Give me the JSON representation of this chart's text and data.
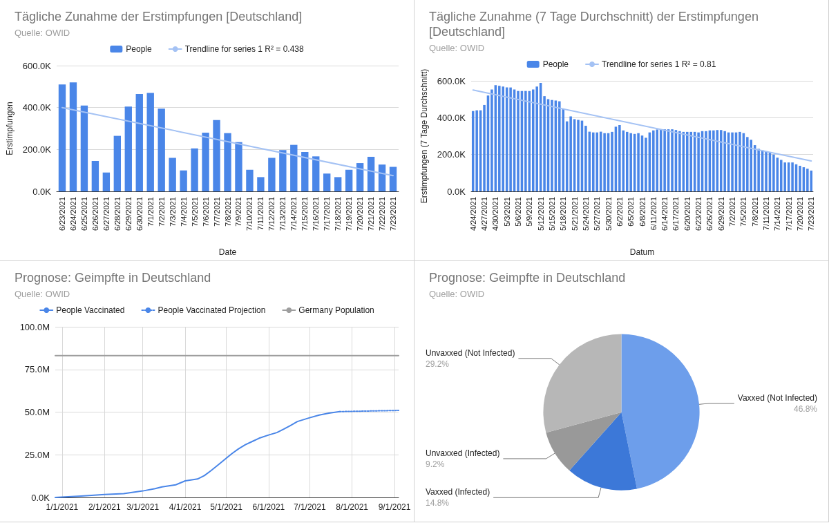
{
  "chart_data": [
    {
      "type": "bar",
      "title": "Tägliche Zunahme der Erstimpfungen [Deutschland]",
      "subtitle": "Quelle: OWID",
      "xlabel": "Date",
      "ylabel": "Erstimpfungen",
      "categories": [
        "6/23/2021",
        "6/24/2021",
        "6/25/2021",
        "6/26/2021",
        "6/27/2021",
        "6/28/2021",
        "6/29/2021",
        "6/30/2021",
        "7/1/2021",
        "7/2/2021",
        "7/3/2021",
        "7/4/2021",
        "7/5/2021",
        "7/6/2021",
        "7/7/2021",
        "7/8/2021",
        "7/9/2021",
        "7/10/2021",
        "7/11/2021",
        "7/12/2021",
        "7/13/2021",
        "7/14/2021",
        "7/15/2021",
        "7/16/2021",
        "7/17/2021",
        "7/18/2021",
        "7/19/2021",
        "7/20/2021",
        "7/21/2021",
        "7/22/2021",
        "7/23/2021"
      ],
      "series": [
        {
          "name": "People",
          "color": "#4a86e8",
          "values": [
            510000,
            520000,
            410000,
            145000,
            90000,
            265000,
            405000,
            465000,
            470000,
            395000,
            160000,
            100000,
            205000,
            280000,
            340000,
            278000,
            235000,
            103000,
            68000,
            160000,
            197000,
            222000,
            188000,
            167000,
            85000,
            68000,
            103000,
            135000,
            165000,
            128000,
            117000
          ]
        },
        {
          "type": "line",
          "name": "Trendline for series 1 R² = 0.438",
          "color": "#a4c2f4",
          "x": [
            "6/23/2021",
            "7/23/2021"
          ],
          "values": [
            400000,
            75000
          ]
        }
      ],
      "ylim": [
        0,
        600000
      ],
      "yticks": [
        {
          "value": 0,
          "label": "0.0K"
        },
        {
          "value": 200000,
          "label": "200.0K"
        },
        {
          "value": 400000,
          "label": "400.0K"
        },
        {
          "value": 600000,
          "label": "600.0K"
        }
      ],
      "grid": "y",
      "legend": "top",
      "marker": "none"
    },
    {
      "type": "bar",
      "title": "Tägliche Zunahme (7 Tage Durchschnitt) der Erstimpfungen [Deutschland]",
      "subtitle": "Quelle: OWID",
      "xlabel": "Datum",
      "ylabel": "Erstimpfungen (7 Tage Durchschnitt)",
      "categories": [
        "4/24/2021",
        null,
        null,
        "4/27/2021",
        null,
        null,
        "4/30/2021",
        null,
        null,
        "5/3/2021",
        null,
        null,
        "5/6/2021",
        null,
        null,
        "5/9/2021",
        null,
        null,
        "5/12/2021",
        null,
        null,
        "5/15/2021",
        null,
        null,
        "5/18/2021",
        null,
        null,
        "5/21/2021",
        null,
        null,
        "5/24/2021",
        null,
        null,
        "5/27/2021",
        null,
        null,
        "5/30/2021",
        null,
        null,
        "6/2/2021",
        null,
        null,
        "6/5/2021",
        null,
        null,
        "6/8/2021",
        null,
        null,
        "6/11/2021",
        null,
        null,
        "6/14/2021",
        null,
        null,
        "6/17/2021",
        null,
        null,
        "6/20/2021",
        null,
        null,
        "6/23/2021",
        null,
        null,
        "6/26/2021",
        null,
        null,
        "6/29/2021",
        null,
        null,
        "7/2/2021",
        null,
        null,
        "7/5/2021",
        null,
        null,
        "7/8/2021",
        null,
        null,
        "7/11/2021",
        null,
        null,
        "7/14/2021",
        null,
        null,
        "7/17/2021",
        null,
        null,
        "7/20/2021",
        null,
        null,
        "7/23/2021"
      ],
      "series": [
        {
          "name": "People",
          "color": "#4a86e8",
          "values": [
            436000,
            440000,
            440000,
            469000,
            520000,
            553000,
            577000,
            573000,
            569000,
            564000,
            564000,
            553000,
            545000,
            545000,
            545000,
            545000,
            553000,
            569000,
            589000,
            517000,
            501000,
            496000,
            493000,
            489000,
            449000,
            380000,
            407000,
            392000,
            388000,
            384000,
            356000,
            324000,
            320000,
            320000,
            324000,
            316000,
            316000,
            323000,
            351000,
            360000,
            331000,
            323000,
            316000,
            312000,
            316000,
            303000,
            291000,
            320000,
            331000,
            336000,
            336000,
            337000,
            337000,
            337000,
            333000,
            327000,
            323000,
            323000,
            323000,
            323000,
            320000,
            327000,
            327000,
            331000,
            331000,
            333000,
            333000,
            327000,
            320000,
            320000,
            320000,
            323000,
            316000,
            295000,
            280000,
            251000,
            231000,
            223000,
            216000,
            211000,
            200000,
            183000,
            171000,
            157000,
            157000,
            157000,
            147000,
            139000,
            131000,
            123000,
            113000
          ]
        },
        {
          "type": "line",
          "name": "Trendline for series 1 R² = 0.81",
          "color": "#a4c2f4",
          "x": [
            "4/24/2021",
            "7/23/2021"
          ],
          "values": [
            550000,
            165000
          ]
        }
      ],
      "ylim": [
        0,
        600000
      ],
      "yticks": [
        {
          "value": 0,
          "label": "0.0K"
        },
        {
          "value": 200000,
          "label": "200.0K"
        },
        {
          "value": 400000,
          "label": "400.0K"
        },
        {
          "value": 600000,
          "label": "600.0K"
        }
      ],
      "grid": "y",
      "legend": "top",
      "marker": "none"
    },
    {
      "type": "line",
      "title": "Prognose: Geimpfte in Deutschland",
      "subtitle": "Quelle: OWID",
      "series": [
        {
          "name": "People Vaccinated",
          "color": "#4a86e8",
          "x": [
            "2020-12-27",
            "2021-01-15",
            "2021-02-01",
            "2021-02-15",
            "2021-03-01",
            "2021-03-10",
            "2021-03-15",
            "2021-03-25",
            "2021-04-01",
            "2021-04-10",
            "2021-04-15",
            "2021-04-20",
            "2021-04-25",
            "2021-05-01",
            "2021-05-05",
            "2021-05-10",
            "2021-05-15",
            "2021-05-20",
            "2021-05-25",
            "2021-06-01",
            "2021-06-07",
            "2021-06-12",
            "2021-06-17",
            "2021-06-22",
            "2021-07-01",
            "2021-07-08",
            "2021-07-15",
            "2021-07-23"
          ],
          "values": [
            0,
            800000,
            1700000,
            2200000,
            3800000,
            5200000,
            6200000,
            7400000,
            9700000,
            10800000,
            12800000,
            15800000,
            19000000,
            23000000,
            25600000,
            28500000,
            30900000,
            32800000,
            34700000,
            36600000,
            38000000,
            40000000,
            42200000,
            44500000,
            46700000,
            48300000,
            49400000,
            50300000
          ]
        },
        {
          "name": "People Vaccinated Projection",
          "color": "#4a86e8",
          "line_style": "dotted",
          "x": [
            "2021-07-23",
            "2021-09-04"
          ],
          "values": [
            50300000,
            51000000
          ]
        },
        {
          "name": "Germany Population",
          "color": "#9e9e9e",
          "x": [
            "2020-12-27",
            "2021-09-04"
          ],
          "values": [
            83100000,
            83100000
          ]
        }
      ],
      "xlim": [
        "2020-12-27",
        "2021-09-04"
      ],
      "xticks": [
        {
          "value": "2021-01-01",
          "label": "1/1/2021"
        },
        {
          "value": "2021-02-01",
          "label": "2/1/2021"
        },
        {
          "value": "2021-03-01",
          "label": "3/1/2021"
        },
        {
          "value": "2021-04-01",
          "label": "4/1/2021"
        },
        {
          "value": "2021-05-01",
          "label": "5/1/2021"
        },
        {
          "value": "2021-06-01",
          "label": "6/1/2021"
        },
        {
          "value": "2021-07-01",
          "label": "7/1/2021"
        },
        {
          "value": "2021-08-01",
          "label": "8/1/2021"
        },
        {
          "value": "2021-09-01",
          "label": "9/1/2021"
        }
      ],
      "ylim": [
        0,
        100000000
      ],
      "yticks": [
        {
          "value": 0,
          "label": "0.0K"
        },
        {
          "value": 25000000,
          "label": "25.0M"
        },
        {
          "value": 50000000,
          "label": "50.0M"
        },
        {
          "value": 75000000,
          "label": "75.0M"
        },
        {
          "value": 100000000,
          "label": "100.0M"
        }
      ],
      "grid": true,
      "legend": "top",
      "marker": "none",
      "line_style": "solid"
    },
    {
      "type": "pie",
      "title": "Prognose: Geimpfte in Deutschland",
      "subtitle": "Quelle: OWID",
      "categories": [
        "Vaxxed (Not Infected)",
        "Vaxxed (Infected)",
        "Unvaxxed (Infected)",
        "Unvaxxed (Not Infected)"
      ],
      "values": [
        46.8,
        14.8,
        9.2,
        29.2
      ],
      "value_labels": [
        "46.8%",
        "14.8%",
        "9.2%",
        "29.2%"
      ],
      "colors": [
        "#6d9eeb",
        "#3c78d8",
        "#999999",
        "#b7b7b7"
      ]
    }
  ]
}
